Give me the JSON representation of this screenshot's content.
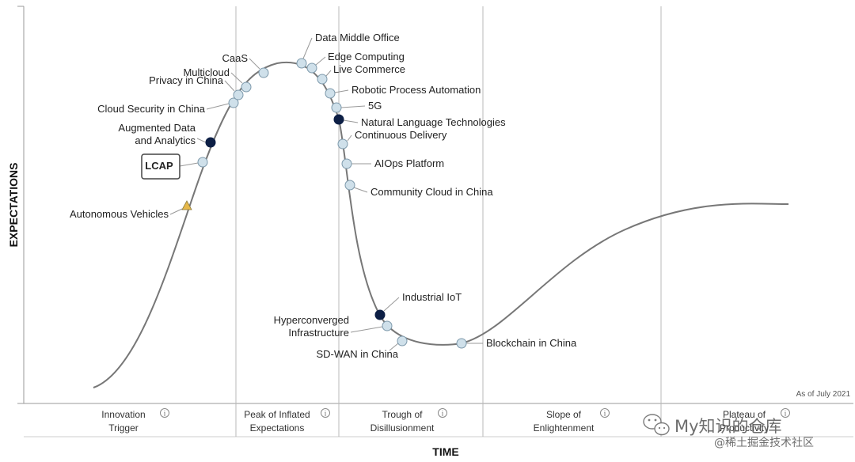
{
  "chart_data": {
    "type": "hype-cycle",
    "xlabel": "TIME",
    "ylabel": "EXPECTATIONS",
    "note": "As of July 2021",
    "phases": [
      {
        "line1": "Innovation",
        "line2": "Trigger"
      },
      {
        "line1": "Peak of Inflated",
        "line2": "Expectations"
      },
      {
        "line1": "Trough of",
        "line2": "Disillusionment"
      },
      {
        "line1": "Slope of",
        "line2": "Enlightenment"
      },
      {
        "line1": "Plateau of",
        "line2": "Productivity"
      }
    ],
    "info_icon": "info-circle-icon",
    "technologies": [
      {
        "name": "Autonomous Vehicles",
        "marker": "triangle",
        "color": "#e6b84a"
      },
      {
        "name": "LCAP",
        "marker": "circle",
        "color": "#cfe0ea",
        "boxed": true
      },
      {
        "name": "Augmented Data and Analytics",
        "marker": "circle",
        "color": "#0d1f45"
      },
      {
        "name": "Cloud Security in China",
        "marker": "circle",
        "color": "#cfe0ea"
      },
      {
        "name": "Privacy in China",
        "marker": "circle",
        "color": "#cfe0ea"
      },
      {
        "name": "Multicloud",
        "marker": "circle",
        "color": "#cfe0ea"
      },
      {
        "name": "CaaS",
        "marker": "circle",
        "color": "#cfe0ea"
      },
      {
        "name": "Data Middle Office",
        "marker": "circle",
        "color": "#cfe0ea"
      },
      {
        "name": "Edge Computing",
        "marker": "circle",
        "color": "#cfe0ea"
      },
      {
        "name": "Live Commerce",
        "marker": "circle",
        "color": "#cfe0ea"
      },
      {
        "name": "Robotic Process Automation",
        "marker": "circle",
        "color": "#cfe0ea"
      },
      {
        "name": "5G",
        "marker": "circle",
        "color": "#cfe0ea"
      },
      {
        "name": "Natural Language Technologies",
        "marker": "circle",
        "color": "#0d1f45"
      },
      {
        "name": "Continuous Delivery",
        "marker": "circle",
        "color": "#cfe0ea"
      },
      {
        "name": "AIOps Platform",
        "marker": "circle",
        "color": "#cfe0ea"
      },
      {
        "name": "Community Cloud in China",
        "marker": "circle",
        "color": "#cfe0ea"
      },
      {
        "name": "Industrial IoT",
        "marker": "circle",
        "color": "#0d1f45"
      },
      {
        "name": "Hyperconverged Infrastructure",
        "marker": "circle",
        "color": "#cfe0ea"
      },
      {
        "name": "SD-WAN in China",
        "marker": "circle",
        "color": "#cfe0ea"
      },
      {
        "name": "Blockchain in China",
        "marker": "circle",
        "color": "#cfe0ea"
      }
    ]
  },
  "watermark": {
    "icon": "wechat-icon",
    "text": "My知识的仓库",
    "subtext": "@稀土掘金技术社区"
  }
}
